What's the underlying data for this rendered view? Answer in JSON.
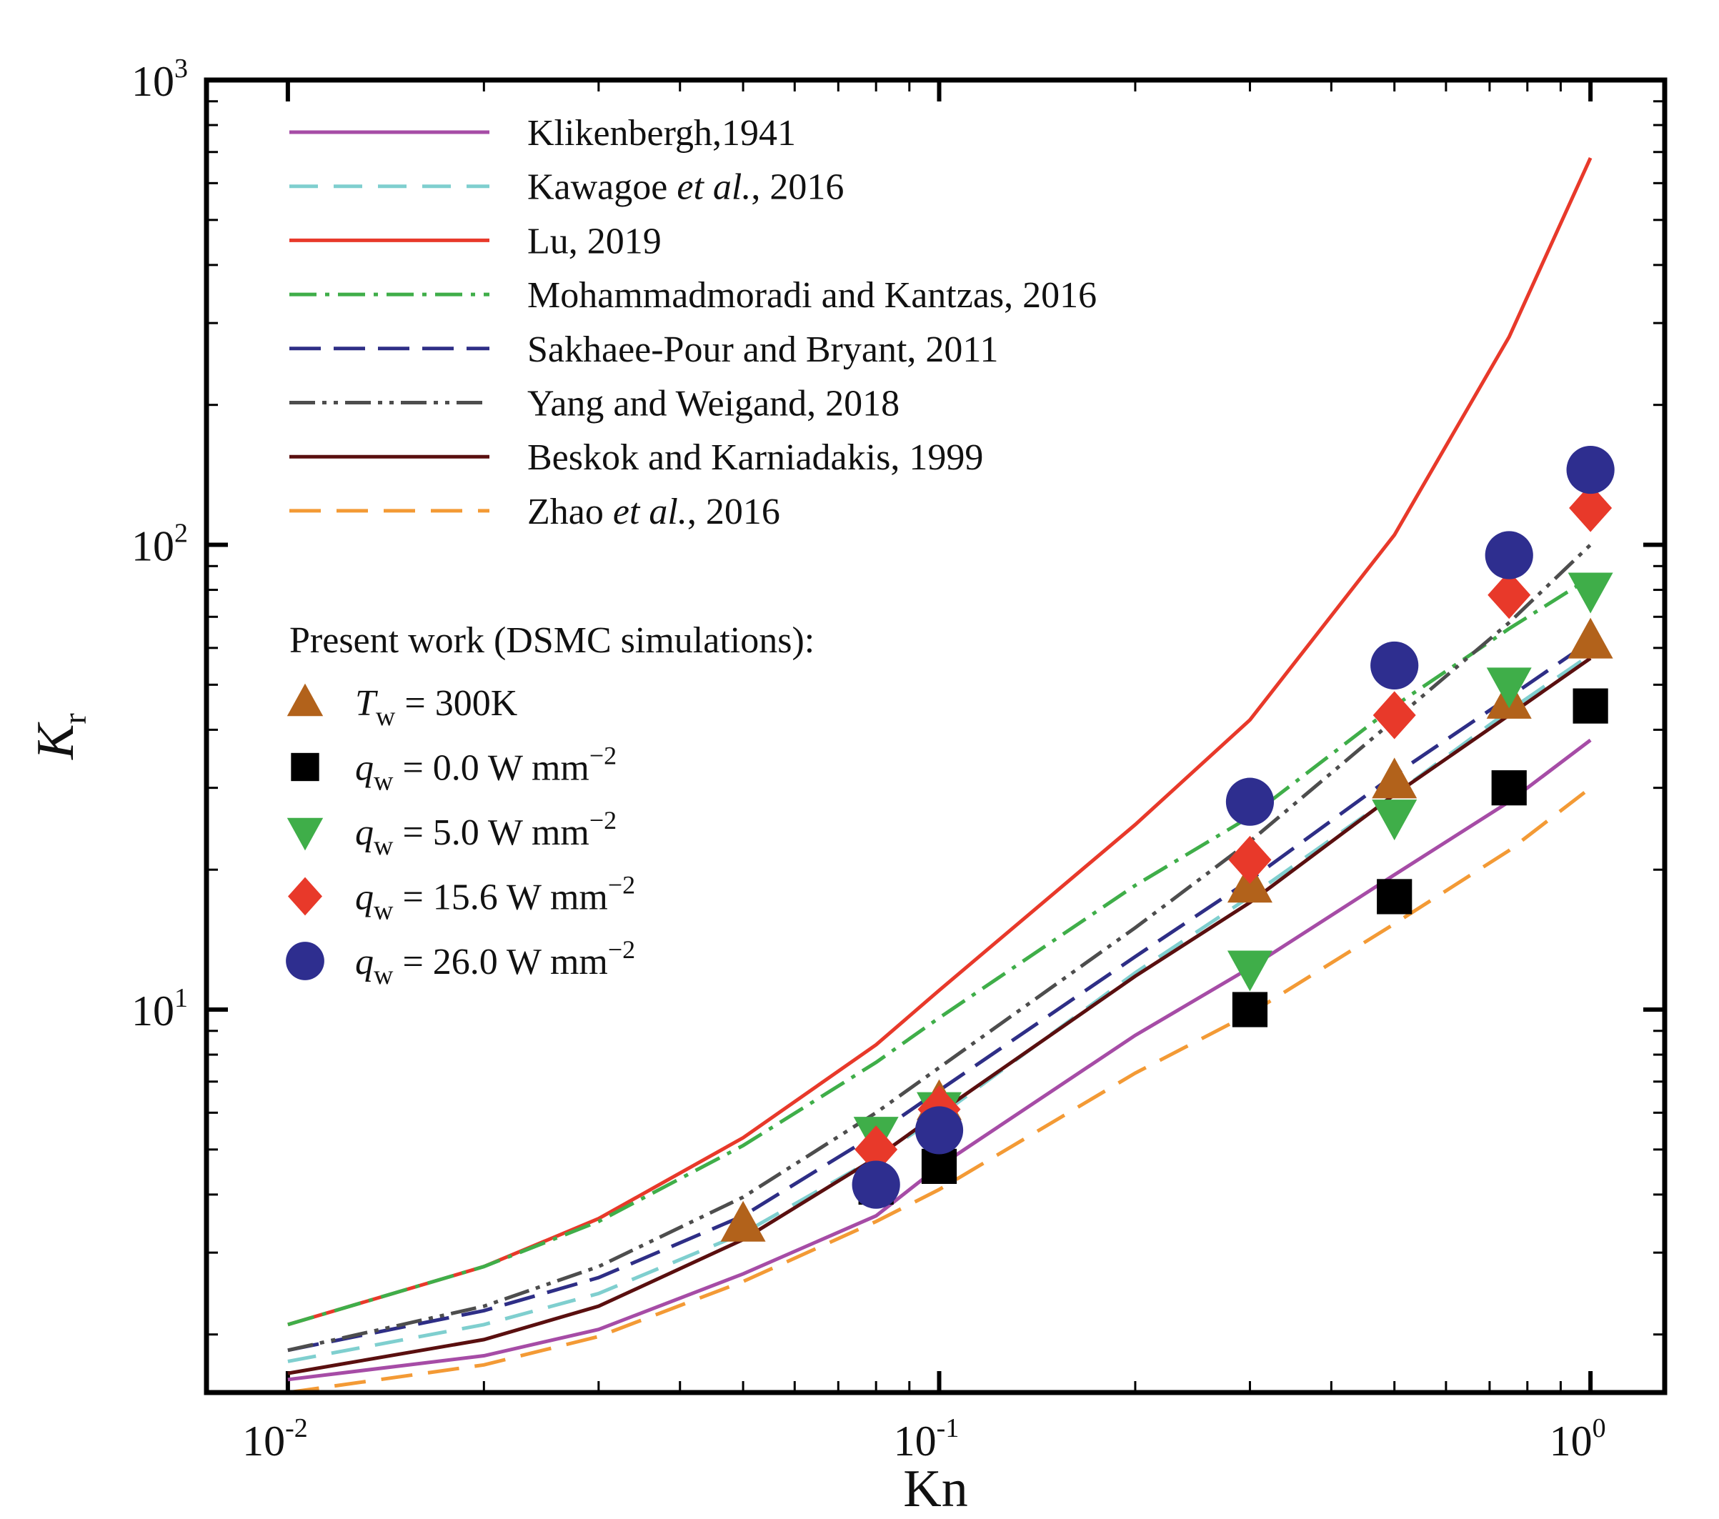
{
  "chart_data": {
    "type": "line",
    "x_scale": "log",
    "y_scale": "log",
    "xlabel": "Kn",
    "ylabel": {
      "main": "K",
      "sub": "r"
    },
    "xlim": [
      0.0075,
      1.3
    ],
    "ylim": [
      1.5,
      1000
    ],
    "x_ticks": [
      {
        "value": 0.01,
        "base": "10",
        "exp": "-2"
      },
      {
        "value": 0.1,
        "base": "10",
        "exp": "-1"
      },
      {
        "value": 1,
        "base": "10",
        "exp": "0"
      }
    ],
    "y_ticks": [
      {
        "value": 10,
        "base": "10",
        "exp": "1"
      },
      {
        "value": 100,
        "base": "10",
        "exp": "2"
      },
      {
        "value": 1000,
        "base": "10",
        "exp": "3"
      }
    ],
    "series": [
      {
        "name": "Klikenbergh,1941",
        "label_parts": [
          "Klikenbergh,1941"
        ],
        "color": "#a64ca6",
        "dash": "",
        "width": 5,
        "x": [
          0.01,
          0.02,
          0.03,
          0.05,
          0.08,
          0.1,
          0.2,
          0.3,
          0.5,
          0.75,
          1.0
        ],
        "y": [
          1.6,
          1.8,
          2.05,
          2.7,
          3.6,
          4.6,
          8.8,
          12.3,
          19.5,
          28.0,
          38.0
        ]
      },
      {
        "name": "Kawagoe et al., 2016",
        "label_parts": [
          "Kawagoe ",
          "et al.",
          ", 2016"
        ],
        "color": "#7fcfcf",
        "dash": "40,22",
        "width": 5,
        "x": [
          0.01,
          0.02,
          0.03,
          0.05,
          0.08,
          0.1,
          0.2,
          0.3,
          0.5,
          0.75,
          1.0
        ],
        "y": [
          1.75,
          2.1,
          2.45,
          3.3,
          4.8,
          5.9,
          12.0,
          17.5,
          29.0,
          44.0,
          58.0
        ]
      },
      {
        "name": "Lu, 2019",
        "label_parts": [
          "Lu, 2019"
        ],
        "color": "#e8392a",
        "dash": "",
        "width": 5,
        "x": [
          0.01,
          0.02,
          0.03,
          0.05,
          0.08,
          0.1,
          0.2,
          0.3,
          0.5,
          0.75,
          1.0
        ],
        "y": [
          2.1,
          2.8,
          3.55,
          5.3,
          8.4,
          11.0,
          25.0,
          42.0,
          105.0,
          280.0,
          680.0
        ]
      },
      {
        "name": "Mohammadmoradi and Kantzas, 2016",
        "label_parts": [
          "Mohammadmoradi and Kantzas, 2016"
        ],
        "color": "#3fae49",
        "dash": "38,12,6,12",
        "width": 5,
        "x": [
          0.01,
          0.02,
          0.03,
          0.05,
          0.08,
          0.1,
          0.2,
          0.3,
          0.5,
          0.75,
          1.0
        ],
        "y": [
          2.1,
          2.8,
          3.5,
          5.1,
          7.7,
          9.6,
          18.5,
          26.0,
          45.0,
          66.0,
          85.0
        ]
      },
      {
        "name": "Sakhaee-Pour and Bryant, 2011",
        "label_parts": [
          "Sakhaee-Pour and Bryant, 2011"
        ],
        "color": "#2e2e86",
        "dash": "44,18",
        "width": 5,
        "x": [
          0.01,
          0.02,
          0.03,
          0.05,
          0.08,
          0.1,
          0.2,
          0.3,
          0.5,
          0.75,
          1.0
        ],
        "y": [
          1.85,
          2.25,
          2.65,
          3.6,
          5.4,
          6.7,
          13.0,
          19.0,
          32.0,
          47.0,
          62.0
        ]
      },
      {
        "name": "Yang and Weigand, 2018",
        "label_parts": [
          "Yang and Weigand, 2018"
        ],
        "color": "#4d4d4d",
        "dash": "36,10,6,10,6,10",
        "width": 5,
        "x": [
          0.01,
          0.02,
          0.03,
          0.05,
          0.08,
          0.1,
          0.2,
          0.3,
          0.5,
          0.75,
          1.0
        ],
        "y": [
          1.85,
          2.3,
          2.8,
          3.95,
          6.0,
          7.5,
          15.0,
          23.0,
          42.0,
          68.0,
          100.0
        ]
      },
      {
        "name": "Beskok and Karniadakis, 1999",
        "label_parts": [
          "Beskok and Karniadakis, 1999"
        ],
        "color": "#5a0f0f",
        "dash": "",
        "width": 5,
        "x": [
          0.01,
          0.02,
          0.03,
          0.05,
          0.08,
          0.1,
          0.2,
          0.3,
          0.5,
          0.75,
          1.0
        ],
        "y": [
          1.65,
          1.95,
          2.3,
          3.2,
          4.8,
          6.0,
          11.8,
          17.0,
          29.0,
          43.0,
          57.0
        ]
      },
      {
        "name": "Zhao et al., 2016",
        "label_parts": [
          "Zhao ",
          "et al.",
          ", 2016"
        ],
        "color": "#f39a35",
        "dash": "44,22",
        "width": 5,
        "x": [
          0.01,
          0.02,
          0.03,
          0.05,
          0.08,
          0.1,
          0.2,
          0.3,
          0.5,
          0.75,
          1.0
        ],
        "y": [
          1.5,
          1.72,
          1.98,
          2.6,
          3.5,
          4.1,
          7.3,
          9.8,
          15.3,
          22.0,
          30.0
        ]
      }
    ],
    "markers_title": "Present work (DSMC simulations):",
    "marker_series": [
      {
        "name": "T_w = 300K",
        "sym": "T",
        "sub": "w",
        "rest": " = 300K",
        "exp": "",
        "shape": "triangle-up",
        "color": "#b2621b",
        "x": [
          0.05,
          0.1,
          0.3,
          0.5,
          0.75,
          1.0
        ],
        "y": [
          3.45,
          6.3,
          18.5,
          31.0,
          46.0,
          62.0
        ]
      },
      {
        "name": "q_w = 0.0 W mm^-2",
        "sym": "q",
        "sub": "w",
        "rest": " = 0.0 W mm",
        "exp": "−2",
        "shape": "square",
        "color": "#000000",
        "x": [
          0.08,
          0.1,
          0.3,
          0.5,
          0.75,
          1.0
        ],
        "y": [
          4.15,
          4.6,
          10.0,
          17.5,
          30.0,
          45.0
        ]
      },
      {
        "name": "q_w = 5.0 W mm^-2",
        "sym": "q",
        "sub": "w",
        "rest": " = 5.0 W mm",
        "exp": "−2",
        "shape": "triangle-down",
        "color": "#3fae49",
        "x": [
          0.08,
          0.1,
          0.3,
          0.5,
          0.75,
          1.0
        ],
        "y": [
          5.4,
          6.1,
          12.3,
          26.0,
          50.0,
          80.0
        ]
      },
      {
        "name": "q_w = 15.6 W mm^-2",
        "sym": "q",
        "sub": "w",
        "rest": " = 15.6 W mm",
        "exp": "−2",
        "shape": "diamond",
        "color": "#e8392a",
        "x": [
          0.08,
          0.1,
          0.3,
          0.5,
          0.75,
          1.0
        ],
        "y": [
          5.0,
          6.1,
          21.0,
          43.0,
          78.0,
          120.0
        ]
      },
      {
        "name": "q_w = 26.0 W mm^-2",
        "sym": "q",
        "sub": "w",
        "rest": " = 26.0 W mm",
        "exp": "−2",
        "shape": "circle",
        "color": "#2e2e8f",
        "x": [
          0.08,
          0.1,
          0.3,
          0.5,
          0.75,
          1.0
        ],
        "y": [
          4.2,
          5.5,
          28.0,
          55.0,
          95.0,
          145.0
        ]
      }
    ],
    "grid": false,
    "legend_position": "top-left"
  }
}
